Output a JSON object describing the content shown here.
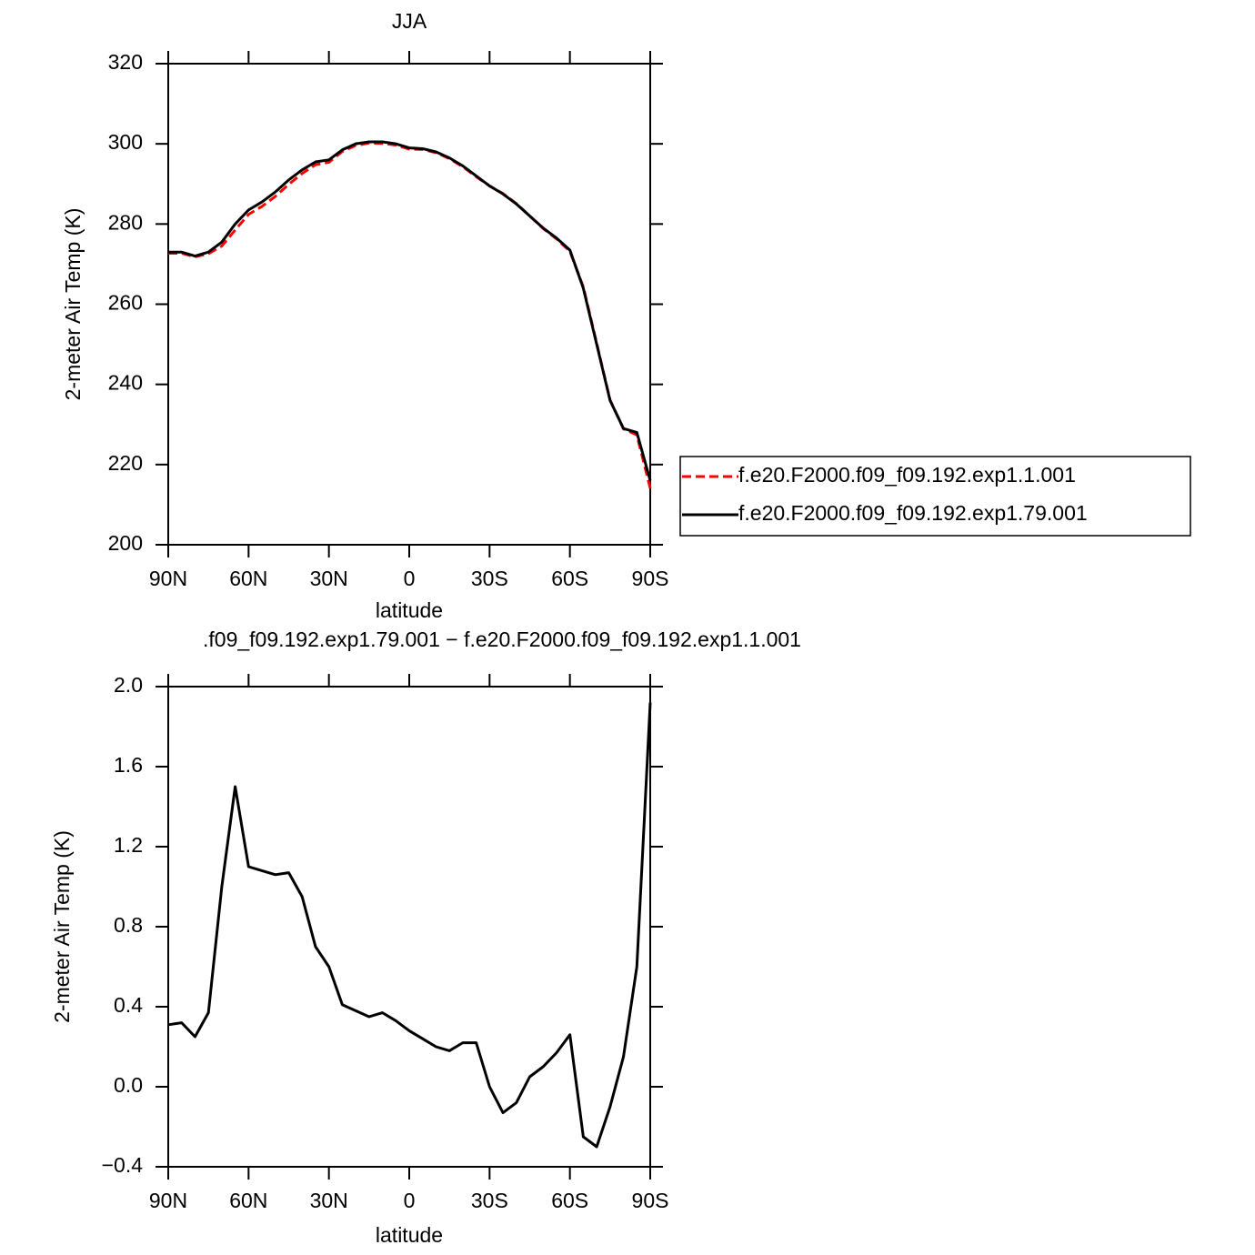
{
  "chart_data": [
    {
      "type": "line",
      "title": "JJA",
      "xlabel": "latitude",
      "ylabel": "2-meter Air Temp (K)",
      "x": [
        90,
        85,
        80,
        75,
        70,
        65,
        60,
        55,
        50,
        45,
        40,
        35,
        30,
        25,
        20,
        15,
        10,
        5,
        0,
        -5,
        -10,
        -15,
        -20,
        -25,
        -30,
        -35,
        -40,
        -45,
        -50,
        -55,
        -60,
        -65,
        -70,
        -75,
        -80,
        -85,
        -90
      ],
      "series": [
        {
          "name": "f.e20.F2000.f09_f09.192.exp1.1.001",
          "color": "#ff0000",
          "dash": true,
          "values": [
            272.7,
            272.7,
            271.8,
            272.6,
            274.5,
            278.5,
            282.4,
            284.4,
            286.9,
            289.9,
            292.6,
            294.8,
            295.4,
            298.1,
            299.6,
            300.2,
            300.1,
            299.7,
            298.7,
            298.6,
            297.8,
            296.3,
            294.3,
            291.8,
            289.5,
            287.6,
            285.1,
            282,
            278.9,
            276.3,
            273.2,
            264.3,
            250.3,
            236.1,
            228.9,
            227.4,
            214.1
          ]
        },
        {
          "name": "f.e20.F2000.f09_f09.192.exp1.79.001",
          "color": "#000000",
          "dash": false,
          "values": [
            273,
            273,
            272,
            273,
            275.5,
            280,
            283.5,
            285.5,
            288,
            291,
            293.5,
            295.5,
            296,
            298.5,
            300,
            300.5,
            300.5,
            300,
            299,
            298.8,
            298,
            296.5,
            294.5,
            292,
            289.5,
            287.5,
            285,
            282,
            279,
            276.5,
            273.5,
            264,
            250,
            236,
            229,
            228,
            216
          ]
        }
      ],
      "xlim": [
        90,
        -90
      ],
      "xticks": [
        {
          "value": 90,
          "label": "90N"
        },
        {
          "value": 60,
          "label": "60N"
        },
        {
          "value": 30,
          "label": "30N"
        },
        0,
        {
          "value": -30,
          "label": "30S"
        },
        {
          "value": -60,
          "label": "60S"
        },
        {
          "value": -90,
          "label": "90S"
        }
      ],
      "ylim": [
        200,
        320
      ],
      "yticks": [
        200,
        220,
        240,
        260,
        280,
        300,
        320
      ],
      "legend": "right"
    },
    {
      "type": "line",
      "title": ".f09_f09.192.exp1.79.001 − f.e20.F2000.f09_f09.192.exp1.1.001",
      "xlabel": "latitude",
      "ylabel": "2-meter Air Temp (K)",
      "x": [
        90,
        85,
        80,
        75,
        70,
        65,
        60,
        55,
        50,
        45,
        40,
        35,
        30,
        25,
        20,
        15,
        10,
        5,
        0,
        -5,
        -10,
        -15,
        -20,
        -25,
        -30,
        -35,
        -40,
        -45,
        -50,
        -55,
        -60,
        -65,
        -70,
        -75,
        -80,
        -85,
        -90
      ],
      "series": [
        {
          "color": "#000000",
          "dash": false,
          "values": [
            0.31,
            0.32,
            0.25,
            0.37,
            1.0,
            1.5,
            1.1,
            1.08,
            1.06,
            1.07,
            0.95,
            0.7,
            0.6,
            0.41,
            0.38,
            0.35,
            0.37,
            0.33,
            0.28,
            0.24,
            0.2,
            0.18,
            0.22,
            0.22,
            0.0,
            -0.13,
            -0.08,
            0.05,
            0.1,
            0.17,
            0.26,
            -0.25,
            -0.3,
            -0.1,
            0.15,
            0.6,
            1.92
          ]
        }
      ],
      "xlim": [
        90,
        -90
      ],
      "xticks": [
        {
          "value": 90,
          "label": "90N"
        },
        {
          "value": 60,
          "label": "60N"
        },
        {
          "value": 30,
          "label": "30N"
        },
        0,
        {
          "value": -30,
          "label": "30S"
        },
        {
          "value": -60,
          "label": "60S"
        },
        {
          "value": -90,
          "label": "90S"
        }
      ],
      "ylim": [
        -0.4,
        2.0
      ],
      "yticks": [
        {
          "value": -0.4,
          "label": "−0.4"
        },
        {
          "value": 0,
          "label": "0.0"
        },
        0.4,
        0.8,
        1.2,
        1.6,
        {
          "value": 2,
          "label": "2.0"
        }
      ]
    }
  ]
}
